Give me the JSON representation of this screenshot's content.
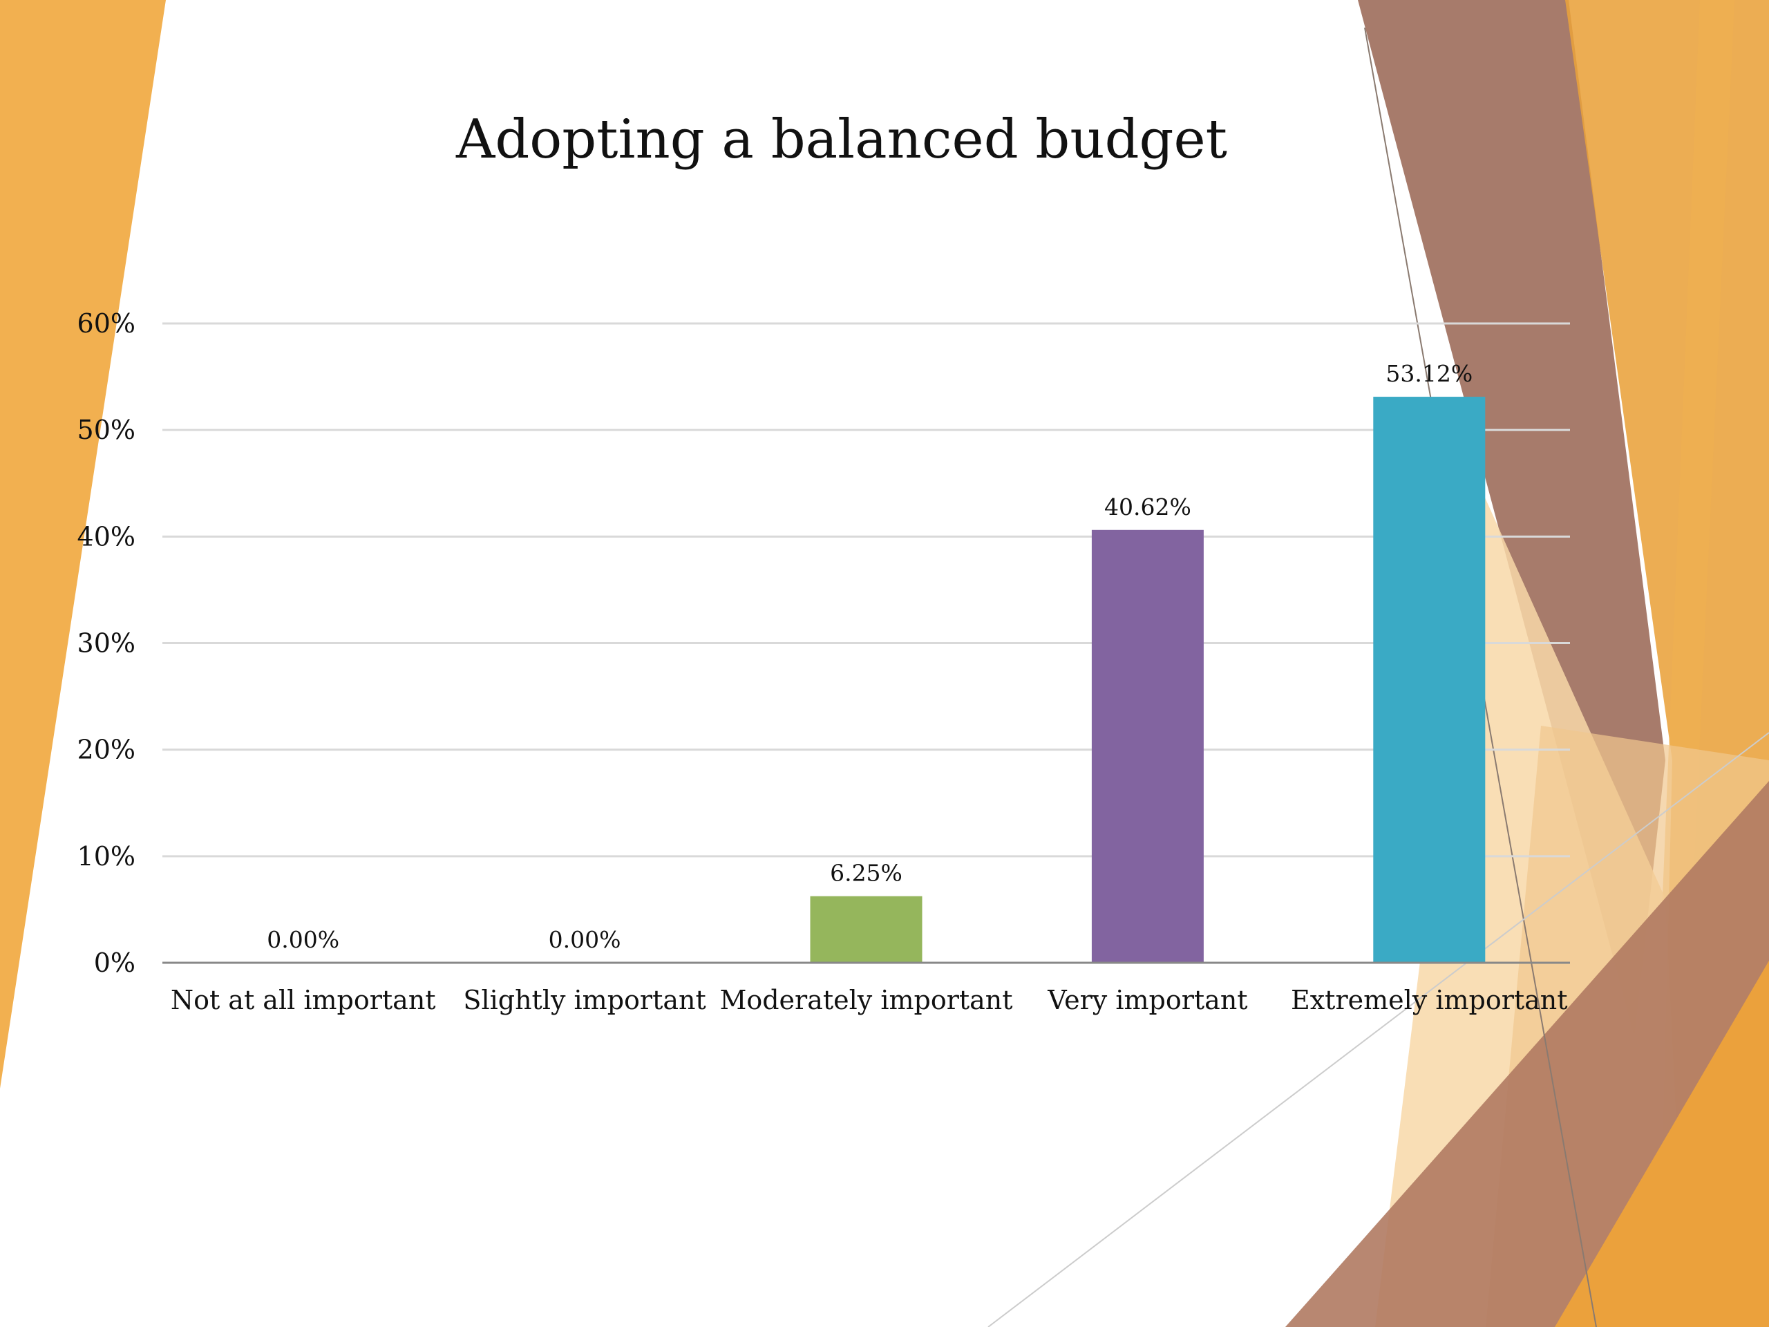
{
  "slide": {
    "accent_orange": "#F0B050",
    "accent_brown": "#A0705A",
    "accent_light": "#F8D8A8"
  },
  "chart_data": {
    "type": "bar",
    "title": "Adopting a balanced budget",
    "xlabel": "",
    "ylabel": "",
    "categories": [
      "Not at all important",
      "Slightly important",
      "Moderately important",
      "Very important",
      "Extremely important"
    ],
    "values": [
      0.0,
      0.0,
      6.25,
      40.62,
      53.12
    ],
    "data_labels": [
      "0.00%",
      "0.00%",
      "6.25%",
      "40.62%",
      "53.12%"
    ],
    "colors": [
      "#E9A23B",
      "#B46A3C",
      "#95B65C",
      "#8264A0",
      "#3AAAC5"
    ],
    "ylim": [
      0,
      60
    ],
    "yticks": [
      0,
      10,
      20,
      30,
      40,
      50,
      60
    ],
    "ytick_labels": [
      "0%",
      "10%",
      "20%",
      "30%",
      "40%",
      "50%",
      "60%"
    ],
    "grid": true,
    "legend": "none"
  }
}
